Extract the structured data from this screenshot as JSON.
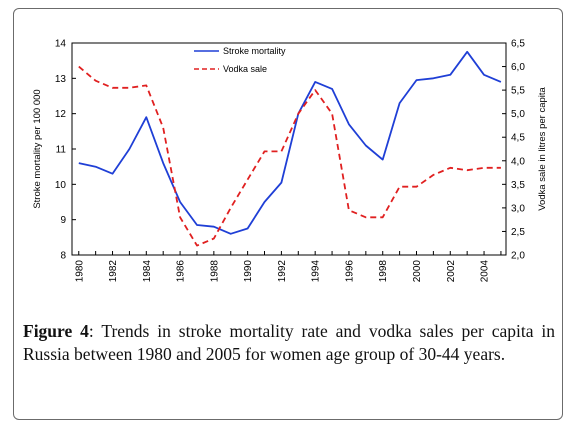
{
  "chart_data": {
    "type": "line",
    "x": [
      1980,
      1981,
      1982,
      1983,
      1984,
      1985,
      1986,
      1987,
      1988,
      1989,
      1990,
      1991,
      1992,
      1993,
      1994,
      1995,
      1996,
      1997,
      1998,
      1999,
      2000,
      2001,
      2002,
      2003,
      2004,
      2005
    ],
    "x_ticks": [
      "1980",
      "1982",
      "1984",
      "1986",
      "1988",
      "1990",
      "1992",
      "1994",
      "1996",
      "1998",
      "2000",
      "2002",
      "2004"
    ],
    "xlim": [
      1979.6,
      2005.3
    ],
    "ylabel": "Stroke mortality per 100 000",
    "ylim": [
      8,
      14
    ],
    "y_ticks": [
      "8",
      "9",
      "10",
      "11",
      "12",
      "13",
      "14"
    ],
    "y2label": "Vodka sale in litres per capita",
    "y2lim": [
      2.0,
      6.5
    ],
    "y2_ticks": [
      "2,0",
      "2,5",
      "3,0",
      "3,5",
      "4,0",
      "4,5",
      "5,0",
      "5,5",
      "6,0",
      "6,5"
    ],
    "series": [
      {
        "name": "Stroke mortality",
        "axis": "left",
        "color": "#1f3fd6",
        "style": "solid",
        "values": [
          10.6,
          10.5,
          10.3,
          11.0,
          11.9,
          10.6,
          9.5,
          8.85,
          8.8,
          8.6,
          8.75,
          9.5,
          10.05,
          12.0,
          12.9,
          12.7,
          11.7,
          11.1,
          10.7,
          12.3,
          12.95,
          13.0,
          13.1,
          13.75,
          13.1,
          12.9
        ]
      },
      {
        "name": "Vodka sale",
        "axis": "right",
        "color": "#e02020",
        "style": "dashed",
        "values": [
          6.0,
          5.7,
          5.55,
          5.55,
          5.6,
          4.7,
          2.8,
          2.2,
          2.35,
          3.0,
          3.6,
          4.2,
          4.2,
          5.0,
          5.5,
          5.0,
          2.95,
          2.8,
          2.8,
          3.45,
          3.45,
          3.7,
          3.85,
          3.8,
          3.85,
          3.85
        ]
      }
    ],
    "grid": false,
    "legend_position": "top-left"
  },
  "caption": {
    "label": "Figure 4",
    "text": ": Trends in stroke mortality rate and vodka sales per capita in Russia between 1980 and 2005 for women age group of 30-44 years."
  }
}
